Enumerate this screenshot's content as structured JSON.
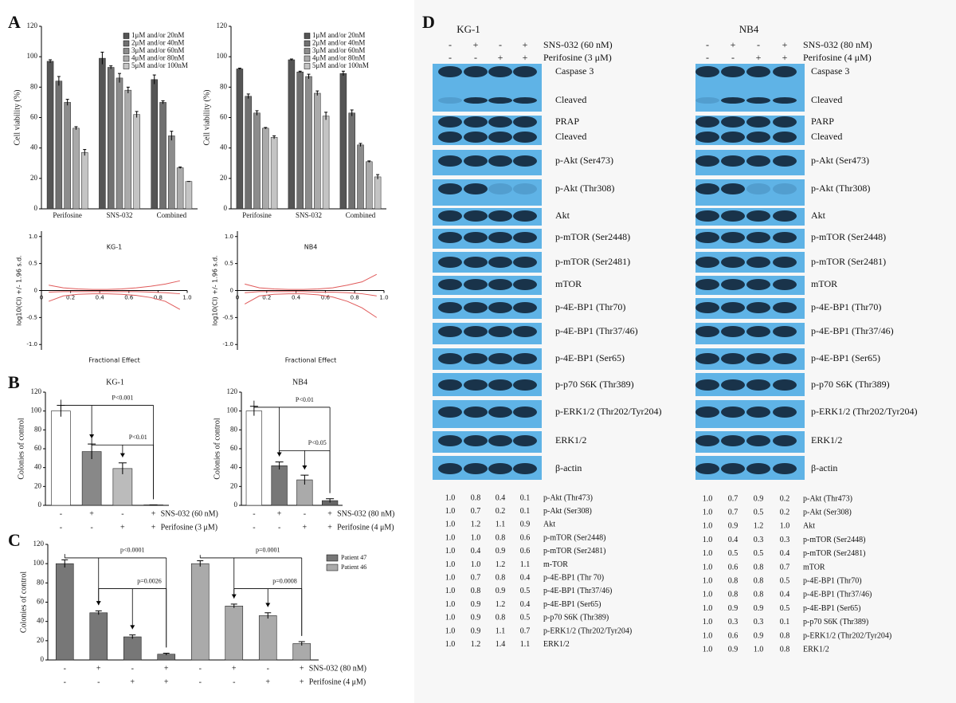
{
  "panel_labels": [
    "A",
    "B",
    "C",
    "D"
  ],
  "chart_data": [
    {
      "type": "bar",
      "y_label": "Cell viability (%)",
      "categories": [
        "Perifosine",
        "SNS-032",
        "Combined"
      ],
      "ylim": [
        0,
        120
      ],
      "yticks": [
        0,
        20,
        40,
        60,
        80,
        100,
        120
      ],
      "series": [
        {
          "name": "1μM and/or 20nM",
          "color": "#555555",
          "values": [
            97,
            99,
            85
          ],
          "errors": [
            1,
            4,
            3
          ]
        },
        {
          "name": "2μM and/or 40nM",
          "color": "#707070",
          "values": [
            84,
            93,
            70
          ],
          "errors": [
            3,
            1,
            1
          ]
        },
        {
          "name": "3μM and/or 60nM",
          "color": "#8c8c8c",
          "values": [
            70,
            86,
            48
          ],
          "errors": [
            2,
            3,
            3
          ]
        },
        {
          "name": "4μM and/or 80nM",
          "color": "#aaaaaa",
          "values": [
            53,
            78,
            27
          ],
          "errors": [
            1,
            2,
            0.5
          ]
        },
        {
          "name": "5μM and/or 100nM",
          "color": "#c4c4c4",
          "values": [
            37,
            62,
            18
          ],
          "errors": [
            2,
            2,
            0
          ]
        }
      ]
    },
    {
      "type": "bar",
      "y_label": "Cell viability (%)",
      "categories": [
        "Perifosine",
        "SNS-032",
        "Combined"
      ],
      "ylim": [
        0,
        120
      ],
      "yticks": [
        0,
        20,
        40,
        60,
        80,
        100,
        120
      ],
      "series": [
        {
          "name": "1μM and/or 20nM",
          "color": "#555555",
          "values": [
            92,
            98,
            89
          ],
          "errors": [
            0.5,
            0.5,
            1.5
          ]
        },
        {
          "name": "2μM and/or 40nM",
          "color": "#707070",
          "values": [
            74,
            90,
            63
          ],
          "errors": [
            1.5,
            0.5,
            2
          ]
        },
        {
          "name": "3μM and/or 60nM",
          "color": "#8c8c8c",
          "values": [
            63,
            87,
            42
          ],
          "errors": [
            1.5,
            1.5,
            1
          ]
        },
        {
          "name": "4μM and/or 80nM",
          "color": "#aaaaaa",
          "values": [
            53,
            76,
            31
          ],
          "errors": [
            0.5,
            1.5,
            0.5
          ]
        },
        {
          "name": "5μM and/or 100nM",
          "color": "#c4c4c4",
          "values": [
            47,
            61,
            21
          ],
          "errors": [
            1,
            2.5,
            1.5
          ]
        }
      ]
    },
    {
      "type": "line",
      "title": "KG-1",
      "y_label": "log10(CI) +/- 1.96 s.d.",
      "x_label": "Fractional Effect",
      "x": [
        0.05,
        0.15,
        0.25,
        0.35,
        0.45,
        0.55,
        0.65,
        0.75,
        0.85,
        0.95
      ],
      "xlim": [
        0,
        1
      ],
      "xticks": [
        0,
        0.2,
        0.4,
        0.6,
        0.8,
        {
          "value": 1,
          "label": "1.0"
        }
      ],
      "ylim": [
        -1.1,
        1.1
      ],
      "yticks": [
        {
          "value": 1,
          "label": "1.0"
        },
        0.5,
        0,
        -0.5,
        {
          "value": -1,
          "label": "-1.0"
        }
      ],
      "series": [
        {
          "color": "#e05a5a",
          "values": [
            0.1,
            0.05,
            0.03,
            0.02,
            0.02,
            0.03,
            0.05,
            0.08,
            0.12,
            0.18
          ]
        },
        {
          "color": "#e05a5a",
          "values": [
            -0.03,
            -0.02,
            -0.02,
            -0.02,
            -0.02,
            -0.02,
            -0.02,
            -0.03,
            -0.04,
            -0.06
          ]
        },
        {
          "color": "#e05a5a",
          "values": [
            -0.2,
            -0.1,
            -0.07,
            -0.06,
            -0.06,
            -0.07,
            -0.09,
            -0.13,
            -0.2,
            -0.35
          ]
        }
      ]
    },
    {
      "type": "line",
      "title": "NB4",
      "y_label": "log10(CI) +/- 1.96 s.d.",
      "x_label": "Fractional Effect",
      "x": [
        0.05,
        0.15,
        0.25,
        0.35,
        0.45,
        0.55,
        0.65,
        0.75,
        0.85,
        0.95
      ],
      "xlim": [
        0,
        1
      ],
      "xticks": [
        0,
        0.2,
        0.4,
        0.6,
        0.8,
        {
          "value": 1,
          "label": "1.0"
        }
      ],
      "ylim": [
        -1.1,
        1.1
      ],
      "yticks": [
        {
          "value": 1,
          "label": "1.0"
        },
        0.5,
        0,
        -0.5,
        {
          "value": -1,
          "label": "-1.0"
        }
      ],
      "series": [
        {
          "color": "#e05a5a",
          "values": [
            0.12,
            0.05,
            0.03,
            0.02,
            0.02,
            0.03,
            0.05,
            0.1,
            0.16,
            0.3
          ]
        },
        {
          "color": "#e05a5a",
          "values": [
            -0.04,
            -0.02,
            -0.02,
            -0.02,
            -0.02,
            -0.03,
            -0.03,
            -0.04,
            -0.06,
            -0.1
          ]
        },
        {
          "color": "#e05a5a",
          "values": [
            -0.25,
            -0.1,
            -0.07,
            -0.06,
            -0.06,
            -0.08,
            -0.12,
            -0.2,
            -0.32,
            -0.5
          ]
        }
      ]
    },
    {
      "type": "bar",
      "title": "KG-1",
      "y_label": "Colonies of control",
      "ylim": [
        0,
        120
      ],
      "yticks": [
        0,
        20,
        40,
        60,
        80,
        100,
        120
      ],
      "values": [
        100,
        57,
        39,
        0.5
      ],
      "errors": [
        6,
        8,
        6,
        0
      ],
      "colors": [
        "#ffffff",
        "#888888",
        "#bbbbbb",
        "#444444"
      ],
      "annotations": [
        "P<0.001",
        "P<0.01"
      ],
      "conditions": [
        {
          "label": "SNS-032 (60 nM)",
          "signs": [
            "-",
            "+",
            "-",
            "+"
          ]
        },
        {
          "label": "Perifosine (3 μM)",
          "signs": [
            "-",
            "-",
            "+",
            "+"
          ]
        }
      ]
    },
    {
      "type": "bar",
      "title": "NB4",
      "y_label": "Colonies of control",
      "ylim": [
        0,
        120
      ],
      "yticks": [
        0,
        20,
        40,
        60,
        80,
        100,
        120
      ],
      "values": [
        100,
        42,
        27,
        5
      ],
      "errors": [
        5,
        4,
        5,
        2
      ],
      "colors": [
        "#ffffff",
        "#777777",
        "#aaaaaa",
        "#666666"
      ],
      "annotations": [
        "P<0.01",
        "P<0.05"
      ],
      "conditions": [
        {
          "label": "SNS-032 (80 nM)",
          "signs": [
            "-",
            "+",
            "-",
            "+"
          ]
        },
        {
          "label": "Perifosine (4 μM)",
          "signs": [
            "-",
            "-",
            "+",
            "+"
          ]
        }
      ]
    },
    {
      "type": "bar",
      "y_label": "Colonies of control",
      "ylim": [
        0,
        120
      ],
      "yticks": [
        0,
        20,
        40,
        60,
        80,
        100,
        120
      ],
      "series": [
        {
          "name": "Patient 47",
          "color": "#777777",
          "values": [
            100,
            49,
            24,
            6
          ],
          "errors": [
            4,
            2,
            2,
            1
          ]
        },
        {
          "name": "Patient 46",
          "color": "#aaaaaa",
          "values": [
            100,
            56,
            46,
            17
          ],
          "errors": [
            3,
            2,
            3,
            2
          ]
        }
      ],
      "annotations": [
        "p<0.0001",
        "p=0.0026",
        "p=0.0001",
        "p=0.0008"
      ],
      "conditions": [
        {
          "label": "SNS-032 (80 nM)",
          "signs": [
            "-",
            "+",
            "-",
            "+",
            "-",
            "+",
            "-",
            "+"
          ]
        },
        {
          "label": "Perifosine (4 μM)",
          "signs": [
            "-",
            "-",
            "+",
            "+",
            "-",
            "-",
            "+",
            "+"
          ]
        }
      ]
    }
  ],
  "blots": [
    {
      "cell_line": "KG-1",
      "treatments": [
        {
          "label": "SNS-032 (60 nM)",
          "signs": [
            "-",
            "+",
            "-",
            "+"
          ]
        },
        {
          "label": "Perifosine (3 μM)",
          "signs": [
            "-",
            "-",
            "+",
            "+"
          ]
        }
      ],
      "bands": [
        "Caspase 3",
        "Cleaved",
        "PRAP",
        "Cleaved",
        "p-Akt (Ser473)",
        "p-Akt (Thr308)",
        "Akt",
        "p-mTOR (Ser2448)",
        "p-mTOR (Ser2481)",
        "mTOR",
        "p-4E-BP1 (Thr70)",
        "p-4E-BP1 (Thr37/46)",
        "p-4E-BP1 (Ser65)",
        "p-p70 S6K (Thr389)",
        "p-ERK1/2  (Thr202/Tyr204)",
        "ERK1/2",
        "β-actin"
      ],
      "quantification": [
        {
          "values": [
            "1.0",
            "0.8",
            "0.4",
            "0.1"
          ],
          "label": "p-Akt (Thr473)"
        },
        {
          "values": [
            "1.0",
            "0.7",
            "0.2",
            "0.1"
          ],
          "label": "p-Akt (Ser308)"
        },
        {
          "values": [
            "1.0",
            "1.2",
            "1.1",
            "0.9"
          ],
          "label": "Akt"
        },
        {
          "values": [
            "1.0",
            "1.0",
            "0.8",
            "0.6"
          ],
          "label": "p-mTOR (Ser2448)"
        },
        {
          "values": [
            "1.0",
            "0.4",
            "0.9",
            "0.6"
          ],
          "label": "p-mTOR (Ser2481)"
        },
        {
          "values": [
            "1.0",
            "1.0",
            "1.2",
            "1.1"
          ],
          "label": "m-TOR"
        },
        {
          "values": [
            "1.0",
            "0.7",
            "0.8",
            "0.4"
          ],
          "label": "p-4E-BP1 (Thr 70)"
        },
        {
          "values": [
            "1.0",
            "0.8",
            "0.9",
            "0.5"
          ],
          "label": "p-4E-BP1 (Thr37/46)"
        },
        {
          "values": [
            "1.0",
            "0.9",
            "1.2",
            "0.4"
          ],
          "label": "p-4E-BP1 (Ser65)"
        },
        {
          "values": [
            "1.0",
            "0.9",
            "0.8",
            "0.5"
          ],
          "label": "p-p70 S6K (Thr389)"
        },
        {
          "values": [
            "1.0",
            "0.9",
            "1.1",
            "0.7"
          ],
          "label": "p-ERK1/2 (Thr202/Tyr204)"
        },
        {
          "values": [
            "1.0",
            "1.2",
            "1.4",
            "1.1"
          ],
          "label": "ERK1/2"
        }
      ]
    },
    {
      "cell_line": "NB4",
      "treatments": [
        {
          "label": "SNS-032 (80 nM)",
          "signs": [
            "-",
            "+",
            "-",
            "+"
          ]
        },
        {
          "label": "Perifosine (4 μM)",
          "signs": [
            "-",
            "-",
            "+",
            "+"
          ]
        }
      ],
      "bands": [
        "Caspase 3",
        "Cleaved",
        "PARP",
        "Cleaved",
        "p-Akt (Ser473)",
        "p-Akt (Thr308)",
        "Akt",
        "p-mTOR (Ser2448)",
        "p-mTOR (Ser2481)",
        "mTOR",
        "p-4E-BP1 (Thr70)",
        "p-4E-BP1 (Thr37/46)",
        "p-4E-BP1 (Ser65)",
        "p-p70 S6K (Thr389)",
        "p-ERK1/2  (Thr202/Tyr204)",
        "ERK1/2",
        "β-actin"
      ],
      "quantification": [
        {
          "values": [
            "1.0",
            "0.7",
            "0.9",
            "0.2"
          ],
          "label": "p-Akt (Thr473)"
        },
        {
          "values": [
            "1.0",
            "0.7",
            "0.5",
            "0.2"
          ],
          "label": "p-Akt (Ser308)"
        },
        {
          "values": [
            "1.0",
            "0.9",
            "1.2",
            "1.0"
          ],
          "label": "Akt"
        },
        {
          "values": [
            "1.0",
            "0.4",
            "0.3",
            "0.3"
          ],
          "label": "p-mTOR (Ser2448)"
        },
        {
          "values": [
            "1.0",
            "0.5",
            "0.5",
            "0.4"
          ],
          "label": "p-mTOR (Ser2481)"
        },
        {
          "values": [
            "1.0",
            "0.6",
            "0.8",
            "0.7"
          ],
          "label": "mTOR"
        },
        {
          "values": [
            "1.0",
            "0.8",
            "0.8",
            "0.5"
          ],
          "label": "p-4E-BP1 (Thr70)"
        },
        {
          "values": [
            "1.0",
            "0.8",
            "0.8",
            "0.4"
          ],
          "label": "p-4E-BP1 (Thr37/46)"
        },
        {
          "values": [
            "1.0",
            "0.9",
            "0.9",
            "0.5"
          ],
          "label": "p-4E-BP1 (Ser65)"
        },
        {
          "values": [
            "1.0",
            "0.3",
            "0.3",
            "0.1"
          ],
          "label": "p-p70 S6K (Thr389)"
        },
        {
          "values": [
            "1.0",
            "0.6",
            "0.9",
            "0.8"
          ],
          "label": "p-ERK1/2 (Thr202/Tyr204)"
        },
        {
          "values": [
            "1.0",
            "0.9",
            "1.0",
            "0.8"
          ],
          "label": "ERK1/2"
        }
      ]
    }
  ]
}
